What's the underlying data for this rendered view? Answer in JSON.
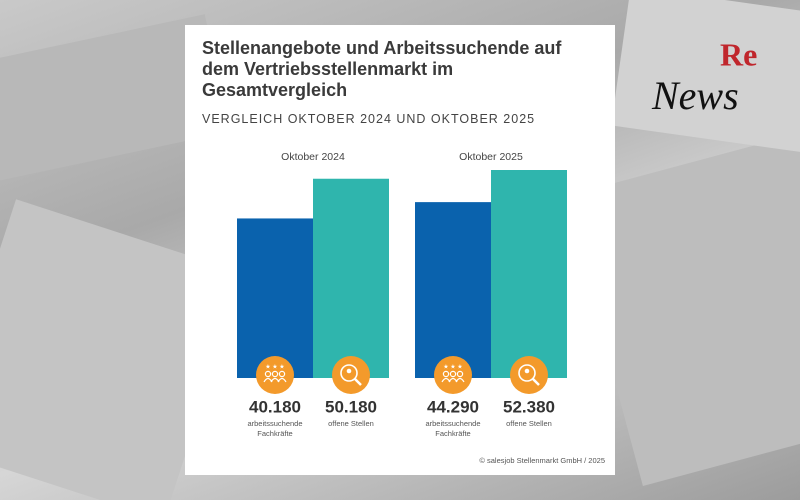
{
  "chart_data": {
    "type": "bar",
    "title": "Stellenangebote und Arbeitssuchende auf dem Vertriebsstellenmarkt im Gesamtvergleich",
    "subtitle": "VERGLEICH OKTOBER 2024 UND OKTOBER 2025",
    "categories": [
      "Oktober 2024",
      "Oktober 2025"
    ],
    "series": [
      {
        "name": "arbeitssuchende Fachkräfte",
        "color": "#0a62ad",
        "values": [
          40180,
          44290
        ],
        "value_labels": [
          "40.180",
          "44.290"
        ]
      },
      {
        "name": "offene Stellen",
        "color": "#2fb5ad",
        "values": [
          50180,
          52380
        ],
        "value_labels": [
          "50.180",
          "52.380"
        ]
      }
    ],
    "source": "© salesjob Stellenmarkt GmbH / 2025"
  },
  "logo": {
    "top": "Re",
    "bottom": "News"
  }
}
